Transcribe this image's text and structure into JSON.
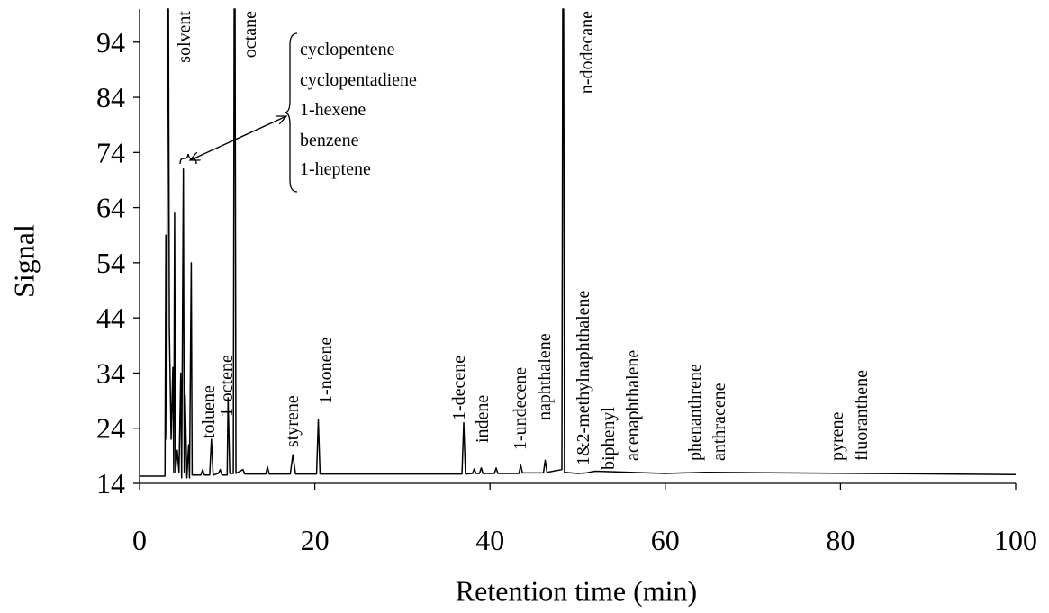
{
  "chart_data": {
    "type": "line",
    "y_label": "Signal",
    "x_label": "Retention time (min)",
    "color": "#000000",
    "xlim": [
      0,
      100
    ],
    "xticks": [
      0,
      20,
      40,
      60,
      80,
      100
    ],
    "ylim": [
      14,
      100
    ],
    "yticks": [
      14,
      24,
      34,
      44,
      54,
      64,
      74,
      84,
      94
    ],
    "x": [
      0,
      2.9,
      3.0,
      3.1,
      3.2,
      3.3,
      3.4,
      3.6,
      3.8,
      3.9,
      4.0,
      4.1,
      4.3,
      4.5,
      4.7,
      4.8,
      5.0,
      5.1,
      5.2,
      5.4,
      5.6,
      5.7,
      5.9,
      6.0,
      7.0,
      7.2,
      7.4,
      8.0,
      8.2,
      8.4,
      9.0,
      9.2,
      9.4,
      10.0,
      10.1,
      10.3,
      10.7,
      10.8,
      10.9,
      11.0,
      11.8,
      12.0,
      14.4,
      14.6,
      14.8,
      17.2,
      17.5,
      17.8,
      20.2,
      20.4,
      20.6,
      36.8,
      37.0,
      37.2,
      38.0,
      38.2,
      38.4,
      38.8,
      39.0,
      39.2,
      40.5,
      40.7,
      40.9,
      43.3,
      43.5,
      43.7,
      46.1,
      46.3,
      46.5,
      48.2,
      48.3,
      48.4,
      48.5,
      50,
      51,
      52,
      60,
      64.6,
      100
    ],
    "values": [
      15.3,
      15.3,
      59,
      22,
      100,
      100,
      42,
      22,
      35,
      16,
      63,
      16,
      20,
      16,
      34,
      15,
      71,
      16,
      30,
      15,
      21,
      15,
      54,
      15.5,
      15.5,
      16.5,
      15.5,
      15.5,
      22,
      15.5,
      15.8,
      16.5,
      15.5,
      15.5,
      29.5,
      15.8,
      15.8,
      100,
      100,
      15.8,
      16.5,
      15.7,
      15.7,
      17,
      15.7,
      15.7,
      19.2,
      15.7,
      15.7,
      25.5,
      15.7,
      15.7,
      25,
      15.7,
      15.8,
      16.6,
      15.8,
      15.8,
      16.8,
      15.8,
      15.8,
      16.8,
      15.8,
      15.8,
      17.3,
      15.9,
      15.9,
      18.2,
      16,
      16.5,
      100,
      100,
      16,
      15.8,
      15.9,
      16.2,
      15.8,
      16,
      15.6
    ],
    "peak_labels": [
      "solvent",
      "octane",
      "n-dodecane",
      "toluene",
      "1-octene",
      "styrene",
      "1-nonene",
      "1-decene",
      "indene",
      "1-undecene",
      "naphthalene",
      "1&2-methylnaphthalene",
      "biphenyl",
      "acenaphthalene",
      "phenanthrene",
      "anthracene",
      "pyrene",
      "fluoranthene"
    ],
    "bracket_labels": [
      "cyclopentene",
      "cyclopentadiene",
      "1-hexene",
      "benzene",
      "1-heptene"
    ]
  }
}
